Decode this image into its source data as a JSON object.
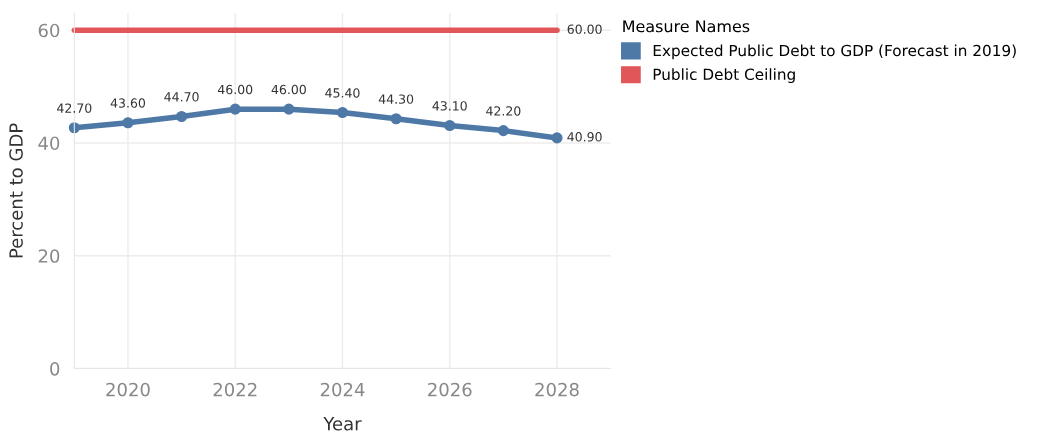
{
  "chart_data": {
    "type": "line",
    "xlabel": "Year",
    "ylabel": "Percent to GDP",
    "legend_title": "Measure Names",
    "x": [
      2019,
      2020,
      2021,
      2022,
      2023,
      2024,
      2025,
      2026,
      2027,
      2028
    ],
    "series": [
      {
        "name": "Expected Public Debt to GDP (Forecast in 2019)",
        "color": "#4e79a7",
        "marker": "circle",
        "values": [
          42.7,
          43.6,
          44.7,
          46.0,
          46.0,
          45.4,
          44.3,
          43.1,
          42.2,
          40.9
        ],
        "value_labels": [
          "42.70",
          "43.60",
          "44.70",
          "46.00",
          "46.00",
          "45.40",
          "44.30",
          "43.10",
          "42.20",
          "40.90"
        ]
      },
      {
        "name": "Public Debt Ceiling",
        "color": "#e15759",
        "marker": "none",
        "values": [
          60,
          60,
          60,
          60,
          60,
          60,
          60,
          60,
          60,
          60
        ],
        "value_labels": [
          null,
          null,
          null,
          null,
          null,
          null,
          null,
          null,
          null,
          "60.00"
        ]
      }
    ],
    "xlim": [
      2019,
      2029
    ],
    "xticks": [
      2020,
      2022,
      2024,
      2026,
      2028
    ],
    "ylim": [
      0,
      63
    ],
    "yticks": [
      0,
      20,
      40,
      60
    ],
    "grid": true,
    "legend": "top right",
    "line_style": "solid"
  }
}
